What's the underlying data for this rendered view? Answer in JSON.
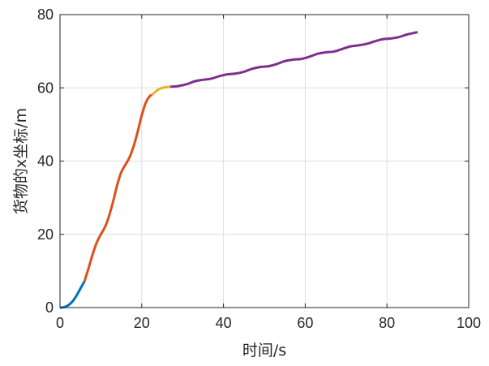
{
  "chart_data": {
    "type": "line",
    "xlabel": "时间/s",
    "ylabel": "货物的x坐标/m",
    "xlim": [
      0,
      100
    ],
    "ylim": [
      0,
      80
    ],
    "xticks": [
      0,
      20,
      40,
      60,
      80,
      100
    ],
    "yticks": [
      0,
      20,
      40,
      60,
      80
    ],
    "xtick_labels": [
      "0",
      "20",
      "40",
      "60",
      "80",
      "100"
    ],
    "ytick_labels": [
      "0",
      "20",
      "40",
      "60",
      "80"
    ],
    "grid": true,
    "series": [
      {
        "color": "#0072BD",
        "x": [
          0,
          1,
          2,
          3,
          4,
          5,
          6
        ],
        "y": [
          0,
          0.1,
          0.6,
          1.6,
          3.2,
          5.2,
          7.2
        ]
      },
      {
        "color": "#D95319",
        "x": [
          6,
          7,
          8,
          9,
          10,
          11,
          12,
          13,
          14,
          15,
          16,
          17,
          18,
          19,
          20,
          21,
          22,
          22.5
        ],
        "y": [
          7.2,
          10.8,
          14.6,
          17.8,
          20.0,
          22.0,
          25.0,
          29.0,
          33.5,
          37.0,
          39.0,
          41.0,
          44.0,
          48.0,
          52.5,
          56.0,
          57.8,
          58.0
        ]
      },
      {
        "color": "#EDB120",
        "x": [
          22.5,
          23,
          24,
          25,
          26,
          27
        ],
        "y": [
          58.0,
          58.6,
          59.5,
          60.0,
          60.2,
          60.3
        ]
      },
      {
        "color": "#7E2F8E",
        "x": [
          27,
          29,
          31,
          33,
          35,
          37,
          39,
          41,
          43,
          45,
          47,
          49,
          51,
          53,
          55,
          57,
          59,
          61,
          63,
          65,
          67,
          69,
          71,
          73,
          75,
          77,
          79,
          81,
          83,
          85,
          87.5
        ],
        "y": [
          60.3,
          60.5,
          61.0,
          61.8,
          62.2,
          62.5,
          63.2,
          63.7,
          63.9,
          64.4,
          65.2,
          65.7,
          65.9,
          66.5,
          67.3,
          67.7,
          67.9,
          68.5,
          69.3,
          69.7,
          69.9,
          70.6,
          71.3,
          71.6,
          72.0,
          72.7,
          73.3,
          73.5,
          73.9,
          74.6,
          75.2
        ]
      }
    ]
  }
}
